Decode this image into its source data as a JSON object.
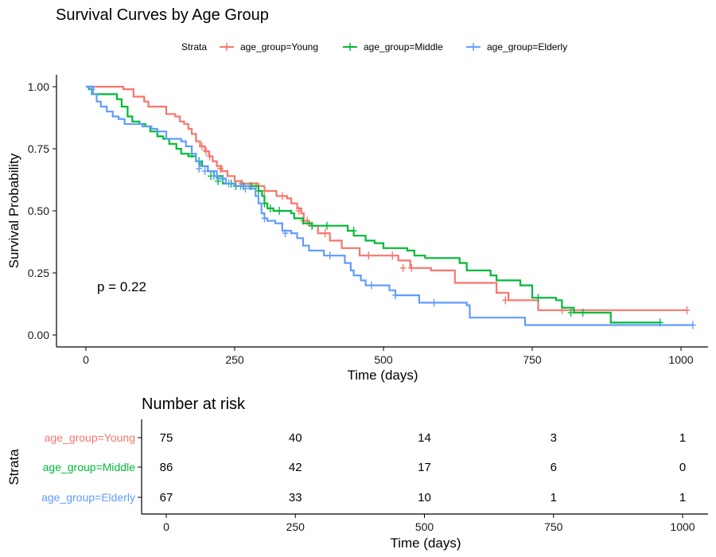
{
  "colors": {
    "Young": "#F8766D",
    "Middle": "#00BA38",
    "Elderly": "#619CFF",
    "axis": "#000000",
    "text": "#1a1a1a"
  },
  "chart_data": [
    {
      "type": "line",
      "subtype": "kaplan-meier step",
      "title": "Survival Curves by Age Group",
      "xlabel": "Time (days)",
      "ylabel": "Survival Probability",
      "xlim": [
        -50,
        1050
      ],
      "ylim": [
        -0.05,
        1.05
      ],
      "xticks": [
        "0",
        "250",
        "500",
        "750",
        "1000"
      ],
      "xtick_values": [
        0,
        250,
        500,
        750,
        1000
      ],
      "yticks": [
        "0.00",
        "0.25",
        "0.50",
        "0.75",
        "1.00"
      ],
      "ytick_values": [
        0,
        0.25,
        0.5,
        0.75,
        1.0
      ],
      "legend": {
        "title": "Strata",
        "position": "top",
        "entries": [
          "age_group=Young",
          "age_group=Middle",
          "age_group=Elderly"
        ]
      },
      "annotation": "p = 0.22",
      "annotation_pos": [
        20,
        0.2
      ],
      "grid": false,
      "series": [
        {
          "name": "age_group=Young",
          "key": "Young",
          "steps": [
            [
              0,
              1.0
            ],
            [
              63,
              0.99
            ],
            [
              80,
              0.96
            ],
            [
              98,
              0.94
            ],
            [
              105,
              0.92
            ],
            [
              120,
              0.92
            ],
            [
              135,
              0.89
            ],
            [
              150,
              0.88
            ],
            [
              158,
              0.86
            ],
            [
              165,
              0.85
            ],
            [
              172,
              0.83
            ],
            [
              178,
              0.81
            ],
            [
              185,
              0.78
            ],
            [
              192,
              0.76
            ],
            [
              200,
              0.74
            ],
            [
              207,
              0.72
            ],
            [
              213,
              0.7
            ],
            [
              220,
              0.68
            ],
            [
              228,
              0.66
            ],
            [
              238,
              0.64
            ],
            [
              250,
              0.62
            ],
            [
              262,
              0.61
            ],
            [
              290,
              0.6
            ],
            [
              300,
              0.58
            ],
            [
              320,
              0.56
            ],
            [
              338,
              0.55
            ],
            [
              345,
              0.53
            ],
            [
              355,
              0.51
            ],
            [
              362,
              0.49
            ],
            [
              366,
              0.46
            ],
            [
              375,
              0.44
            ],
            [
              390,
              0.41
            ],
            [
              410,
              0.38
            ],
            [
              430,
              0.35
            ],
            [
              460,
              0.32
            ],
            [
              525,
              0.3
            ],
            [
              545,
              0.27
            ],
            [
              580,
              0.26
            ],
            [
              620,
              0.21
            ],
            [
              690,
              0.17
            ],
            [
              710,
              0.14
            ],
            [
              760,
              0.1
            ],
            [
              1010,
              0.1
            ]
          ],
          "censors": [
            [
              195,
              0.76
            ],
            [
              202,
              0.74
            ],
            [
              208,
              0.72
            ],
            [
              226,
              0.67
            ],
            [
              262,
              0.61
            ],
            [
              275,
              0.6
            ],
            [
              286,
              0.6
            ],
            [
              300,
              0.58
            ],
            [
              330,
              0.56
            ],
            [
              358,
              0.5
            ],
            [
              365,
              0.46
            ],
            [
              372,
              0.46
            ],
            [
              402,
              0.41
            ],
            [
              475,
              0.32
            ],
            [
              515,
              0.32
            ],
            [
              533,
              0.27
            ],
            [
              547,
              0.27
            ],
            [
              705,
              0.14
            ],
            [
              800,
              0.1
            ],
            [
              1010,
              0.1
            ]
          ]
        },
        {
          "name": "age_group=Middle",
          "key": "Middle",
          "steps": [
            [
              0,
              1.0
            ],
            [
              5,
              0.99
            ],
            [
              10,
              0.97
            ],
            [
              45,
              0.97
            ],
            [
              52,
              0.95
            ],
            [
              60,
              0.92
            ],
            [
              70,
              0.88
            ],
            [
              78,
              0.86
            ],
            [
              90,
              0.85
            ],
            [
              100,
              0.84
            ],
            [
              108,
              0.82
            ],
            [
              120,
              0.8
            ],
            [
              130,
              0.79
            ],
            [
              140,
              0.77
            ],
            [
              152,
              0.75
            ],
            [
              160,
              0.73
            ],
            [
              172,
              0.72
            ],
            [
              185,
              0.7
            ],
            [
              195,
              0.68
            ],
            [
              205,
              0.66
            ],
            [
              215,
              0.64
            ],
            [
              230,
              0.61
            ],
            [
              250,
              0.6
            ],
            [
              285,
              0.6
            ],
            [
              290,
              0.58
            ],
            [
              296,
              0.56
            ],
            [
              300,
              0.53
            ],
            [
              305,
              0.51
            ],
            [
              315,
              0.5
            ],
            [
              345,
              0.49
            ],
            [
              350,
              0.47
            ],
            [
              365,
              0.45
            ],
            [
              380,
              0.44
            ],
            [
              435,
              0.44
            ],
            [
              440,
              0.42
            ],
            [
              450,
              0.4
            ],
            [
              470,
              0.38
            ],
            [
              485,
              0.37
            ],
            [
              500,
              0.35
            ],
            [
              540,
              0.34
            ],
            [
              552,
              0.32
            ],
            [
              570,
              0.31
            ],
            [
              628,
              0.29
            ],
            [
              640,
              0.26
            ],
            [
              680,
              0.24
            ],
            [
              690,
              0.22
            ],
            [
              730,
              0.2
            ],
            [
              750,
              0.15
            ],
            [
              790,
              0.14
            ],
            [
              800,
              0.11
            ],
            [
              820,
              0.09
            ],
            [
              880,
              0.09
            ],
            [
              882,
              0.05
            ],
            [
              965,
              0.05
            ]
          ],
          "censors": [
            [
              178,
              0.73
            ],
            [
              190,
              0.7
            ],
            [
              210,
              0.64
            ],
            [
              222,
              0.62
            ],
            [
              244,
              0.61
            ],
            [
              252,
              0.6
            ],
            [
              265,
              0.6
            ],
            [
              278,
              0.6
            ],
            [
              290,
              0.58
            ],
            [
              300,
              0.53
            ],
            [
              310,
              0.51
            ],
            [
              325,
              0.5
            ],
            [
              380,
              0.44
            ],
            [
              405,
              0.44
            ],
            [
              450,
              0.42
            ],
            [
              760,
              0.15
            ],
            [
              815,
              0.09
            ],
            [
              835,
              0.09
            ],
            [
              965,
              0.05
            ]
          ]
        },
        {
          "name": "age_group=Elderly",
          "key": "Elderly",
          "steps": [
            [
              0,
              1.0
            ],
            [
              12,
              0.97
            ],
            [
              18,
              0.94
            ],
            [
              25,
              0.92
            ],
            [
              35,
              0.9
            ],
            [
              45,
              0.88
            ],
            [
              55,
              0.87
            ],
            [
              65,
              0.85
            ],
            [
              80,
              0.85
            ],
            [
              95,
              0.84
            ],
            [
              110,
              0.83
            ],
            [
              120,
              0.82
            ],
            [
              135,
              0.79
            ],
            [
              150,
              0.79
            ],
            [
              160,
              0.78
            ],
            [
              168,
              0.76
            ],
            [
              178,
              0.73
            ],
            [
              185,
              0.7
            ],
            [
              192,
              0.68
            ],
            [
              205,
              0.66
            ],
            [
              220,
              0.63
            ],
            [
              235,
              0.61
            ],
            [
              250,
              0.6
            ],
            [
              275,
              0.59
            ],
            [
              285,
              0.56
            ],
            [
              290,
              0.53
            ],
            [
              295,
              0.49
            ],
            [
              300,
              0.47
            ],
            [
              305,
              0.46
            ],
            [
              318,
              0.45
            ],
            [
              330,
              0.42
            ],
            [
              345,
              0.41
            ],
            [
              355,
              0.39
            ],
            [
              365,
              0.36
            ],
            [
              375,
              0.34
            ],
            [
              400,
              0.32
            ],
            [
              435,
              0.29
            ],
            [
              445,
              0.26
            ],
            [
              450,
              0.24
            ],
            [
              462,
              0.22
            ],
            [
              470,
              0.2
            ],
            [
              510,
              0.18
            ],
            [
              520,
              0.16
            ],
            [
              560,
              0.13
            ],
            [
              640,
              0.12
            ],
            [
              645,
              0.07
            ],
            [
              700,
              0.07
            ],
            [
              738,
              0.04
            ],
            [
              1020,
              0.04
            ]
          ],
          "censors": [
            [
              10,
              0.99
            ],
            [
              190,
              0.67
            ],
            [
              200,
              0.66
            ],
            [
              215,
              0.64
            ],
            [
              230,
              0.63
            ],
            [
              240,
              0.61
            ],
            [
              260,
              0.6
            ],
            [
              268,
              0.59
            ],
            [
              300,
              0.47
            ],
            [
              335,
              0.41
            ],
            [
              410,
              0.32
            ],
            [
              480,
              0.2
            ],
            [
              520,
              0.16
            ],
            [
              585,
              0.13
            ],
            [
              1020,
              0.04
            ]
          ]
        }
      ]
    },
    {
      "type": "table",
      "title": "Number at risk",
      "xlabel": "Time (days)",
      "ylabel": "Strata",
      "xlim": [
        -50,
        1050
      ],
      "xticks": [
        "0",
        "250",
        "500",
        "750",
        "1000"
      ],
      "xtick_values": [
        0,
        250,
        500,
        750,
        1000
      ],
      "rows": [
        {
          "label": "age_group=Young",
          "key": "Young",
          "values": [
            "75",
            "40",
            "14",
            "3",
            "1"
          ]
        },
        {
          "label": "age_group=Middle",
          "key": "Middle",
          "values": [
            "86",
            "42",
            "17",
            "6",
            "0"
          ]
        },
        {
          "label": "age_group=Elderly",
          "key": "Elderly",
          "values": [
            "67",
            "33",
            "10",
            "1",
            "1"
          ]
        }
      ]
    }
  ]
}
